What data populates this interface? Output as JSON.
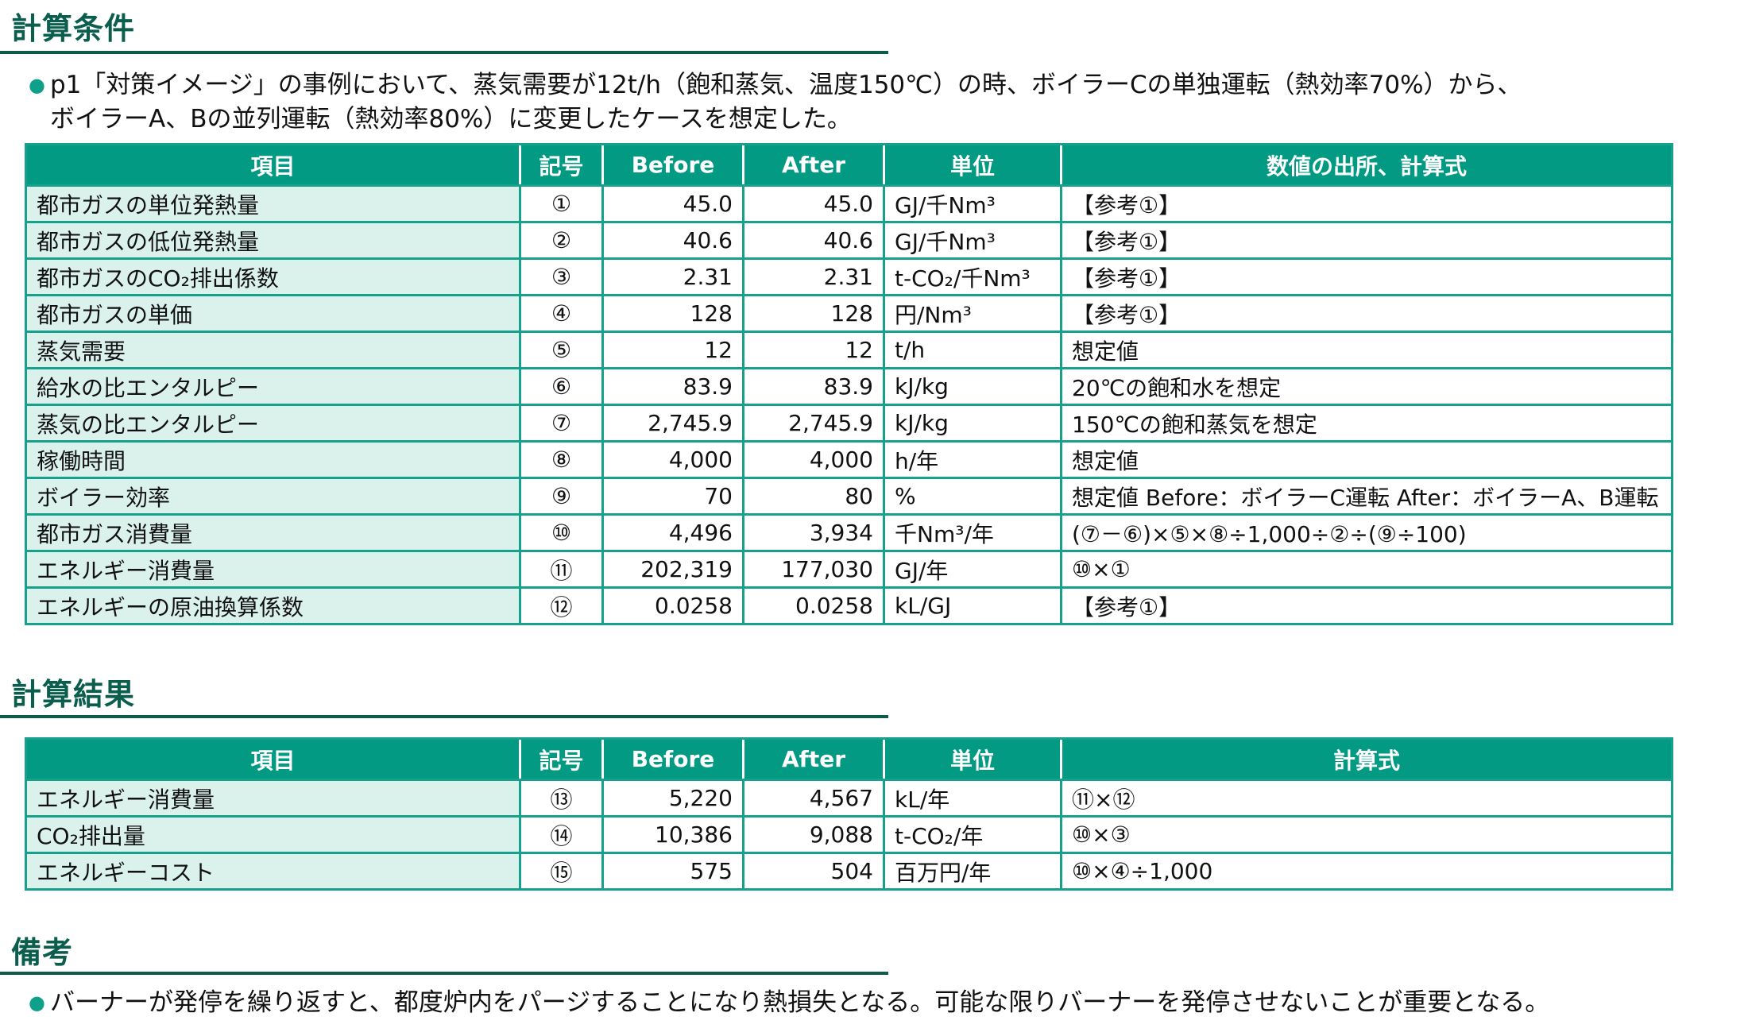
{
  "sections": {
    "conditions": {
      "title": "計算条件",
      "bullet_lines": [
        "p1「対策イメージ」の事例において、蒸気需要が12t/h（飽和蒸気、温度150℃）の時、ボイラーCの単独運転（熱効率70%）から、",
        "ボイラーA、Bの並列運転（熱効率80%）に変更したケースを想定した。"
      ],
      "bullet_icon": "bullet-dot-icon"
    },
    "results": {
      "title": "計算結果"
    },
    "remarks": {
      "title": "備考",
      "bullet": "バーナーが発停を繰り返すと、都度炉内をパージすることになり熱損失となる。可能な限りバーナーを発停させないことが重要となる。"
    }
  },
  "conditions_table": {
    "headers": [
      "項目",
      "記号",
      "Before",
      "After",
      "単位",
      "数値の出所、計算式"
    ],
    "rows": [
      {
        "item": "都市ガスの単位発熱量",
        "sym": "①",
        "before": "45.0",
        "after": "45.0",
        "unit": "GJ/千Nm³",
        "note": "【参考①】"
      },
      {
        "item": "都市ガスの低位発熱量",
        "sym": "②",
        "before": "40.6",
        "after": "40.6",
        "unit": "GJ/千Nm³",
        "note": "【参考①】"
      },
      {
        "item": "都市ガスのCO₂排出係数",
        "sym": "③",
        "before": "2.31",
        "after": "2.31",
        "unit": "t-CO₂/千Nm³",
        "note": "【参考①】"
      },
      {
        "item": "都市ガスの単価",
        "sym": "④",
        "before": "128",
        "after": "128",
        "unit": "円/Nm³",
        "note": "【参考①】"
      },
      {
        "item": "蒸気需要",
        "sym": "⑤",
        "before": "12",
        "after": "12",
        "unit": "t/h",
        "note": "想定値"
      },
      {
        "item": "給水の比エンタルピー",
        "sym": "⑥",
        "before": "83.9",
        "after": "83.9",
        "unit": "kJ/kg",
        "note": "20℃の飽和水を想定"
      },
      {
        "item": "蒸気の比エンタルピー",
        "sym": "⑦",
        "before": "2,745.9",
        "after": "2,745.9",
        "unit": "kJ/kg",
        "note": "150℃の飽和蒸気を想定"
      },
      {
        "item": "稼働時間",
        "sym": "⑧",
        "before": "4,000",
        "after": "4,000",
        "unit": "h/年",
        "note": "想定値"
      },
      {
        "item": "ボイラー効率",
        "sym": "⑨",
        "before": "70",
        "after": "80",
        "unit": "%",
        "note": "想定値  Before：ボイラーC運転  After：ボイラーA、B運転"
      },
      {
        "item": "都市ガス消費量",
        "sym": "⑩",
        "before": "4,496",
        "after": "3,934",
        "unit": "千Nm³/年",
        "note": "(⑦－⑥)×⑤×⑧÷1,000÷②÷(⑨÷100)"
      },
      {
        "item": "エネルギー消費量",
        "sym": "⑪",
        "before": "202,319",
        "after": "177,030",
        "unit": "GJ/年",
        "note": "⑩×①"
      },
      {
        "item": "エネルギーの原油換算係数",
        "sym": "⑫",
        "before": "0.0258",
        "after": "0.0258",
        "unit": "kL/GJ",
        "note": "【参考①】"
      }
    ]
  },
  "results_table": {
    "headers": [
      "項目",
      "記号",
      "Before",
      "After",
      "単位",
      "計算式"
    ],
    "rows": [
      {
        "item": "エネルギー消費量",
        "sym": "⑬",
        "before": "5,220",
        "after": "4,567",
        "unit": "kL/年",
        "note": "⑪×⑫"
      },
      {
        "item": "CO₂排出量",
        "sym": "⑭",
        "before": "10,386",
        "after": "9,088",
        "unit": "t-CO₂/年",
        "note": "⑩×③"
      },
      {
        "item": "エネルギーコスト",
        "sym": "⑮",
        "before": "575",
        "after": "504",
        "unit": "百万円/年",
        "note": "⑩×④÷1,000"
      }
    ]
  },
  "colors": {
    "header_bg": "#039a84",
    "item_bg": "#dbf1ec",
    "border": "#17a08c",
    "title": "#0b5e4e",
    "rule": "#0d5c4a",
    "bullet": "#0fa08a"
  }
}
